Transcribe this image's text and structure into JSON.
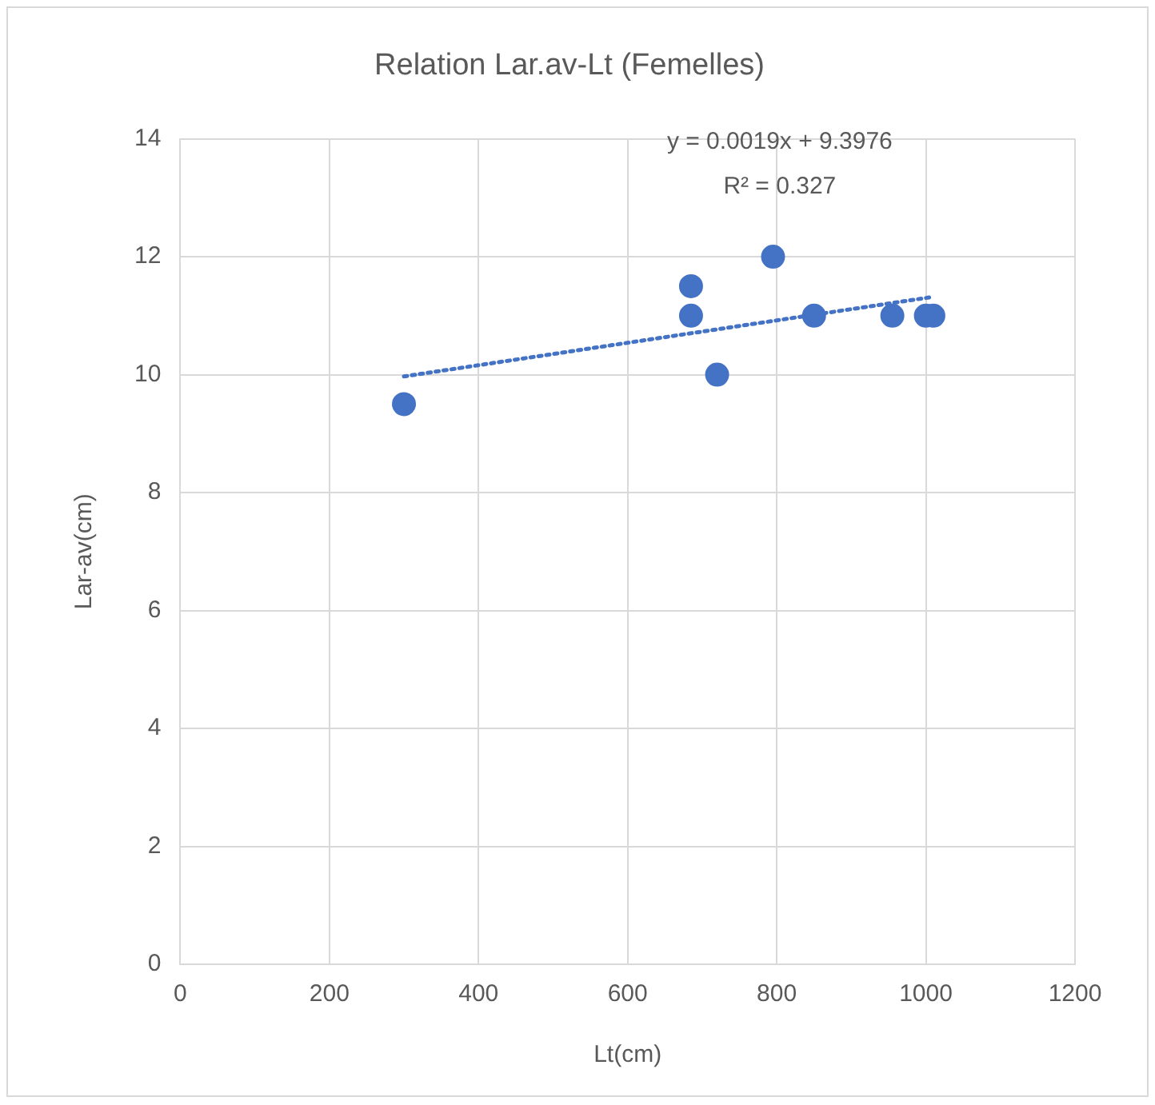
{
  "chart_data": {
    "type": "scatter",
    "title": "Relation Lar.av-Lt (Femelles)",
    "xlabel": "Lt(cm)",
    "ylabel": "Lar-av(cm)",
    "annotations": [
      "y = 0.0019x + 9.3976",
      "R² = 0.327"
    ],
    "series": [
      {
        "type": "scatter",
        "color": "#4472c4",
        "x": [
          300,
          685,
          685,
          720,
          795,
          850,
          955,
          1000,
          1010
        ],
        "values": [
          9.5,
          11.5,
          11,
          10,
          12,
          11,
          11,
          11,
          11
        ],
        "marker": "circle"
      },
      {
        "type": "line",
        "color": "#4472c4",
        "x": [
          300,
          1010
        ],
        "values": [
          9.97,
          11.32
        ],
        "line_style": "dotted",
        "marker": "none"
      }
    ],
    "xlim": [
      0,
      1200
    ],
    "xticks": [
      0,
      200,
      400,
      600,
      800,
      1000,
      1200
    ],
    "ylim": [
      0,
      14
    ],
    "yticks": [
      0,
      2,
      4,
      6,
      8,
      10,
      12,
      14
    ],
    "grid": true,
    "legend": false
  }
}
